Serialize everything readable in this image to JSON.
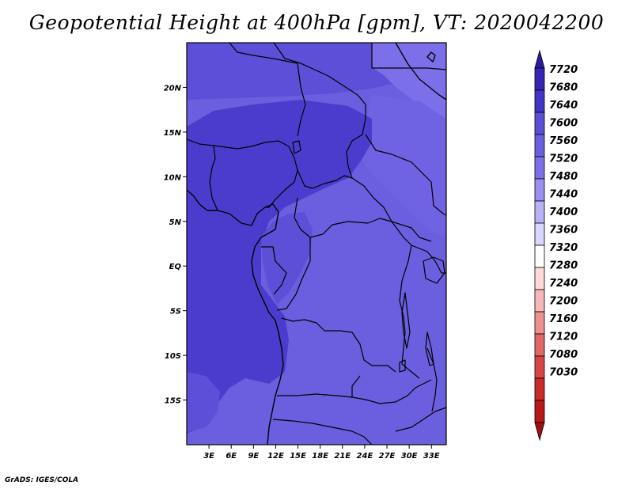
{
  "title": "Geopotential Height at 400hPa [gpm], VT: 2020042200",
  "footer": "GrADS: IGES/COLA",
  "map": {
    "lon_range": [
      0,
      35
    ],
    "lat_range": [
      -20,
      25
    ],
    "lat_ticks": [
      {
        "value": 20,
        "label": "20N"
      },
      {
        "value": 15,
        "label": "15N"
      },
      {
        "value": 10,
        "label": "10N"
      },
      {
        "value": 5,
        "label": "5N"
      },
      {
        "value": 0,
        "label": "EQ"
      },
      {
        "value": -5,
        "label": "5S"
      },
      {
        "value": -10,
        "label": "10S"
      },
      {
        "value": -15,
        "label": "15S"
      }
    ],
    "lon_ticks": [
      {
        "value": 3,
        "label": "3E"
      },
      {
        "value": 6,
        "label": "6E"
      },
      {
        "value": 9,
        "label": "9E"
      },
      {
        "value": 12,
        "label": "12E"
      },
      {
        "value": 15,
        "label": "15E"
      },
      {
        "value": 18,
        "label": "18E"
      },
      {
        "value": 21,
        "label": "21E"
      },
      {
        "value": 24,
        "label": "24E"
      },
      {
        "value": 27,
        "label": "27E"
      },
      {
        "value": 30,
        "label": "30E"
      },
      {
        "value": 33,
        "label": "33E"
      }
    ]
  },
  "colorbar": {
    "levels": [
      "7720",
      "7680",
      "7640",
      "7600",
      "7560",
      "7520",
      "7480",
      "7440",
      "7400",
      "7360",
      "7320",
      "7280",
      "7240",
      "7200",
      "7160",
      "7120",
      "7080",
      "7030"
    ],
    "colors": [
      "#2a1ba3",
      "#3525b5",
      "#4035c6",
      "#5a4fd6",
      "#6a5fdf",
      "#7c70ea",
      "#9a90f2",
      "#b8b2f7",
      "#d8d6fb",
      "#ffffff",
      "#fbdada",
      "#f5b7b7",
      "#ee9090",
      "#e26868",
      "#d84545",
      "#cc2a2a",
      "#b81818",
      "#a01010"
    ]
  },
  "field_colors": {
    "c7600": "#4a3dcd",
    "c7560": "#5b50d7",
    "c7520": "#6a5fdf",
    "c7480": "#7c70ea"
  }
}
